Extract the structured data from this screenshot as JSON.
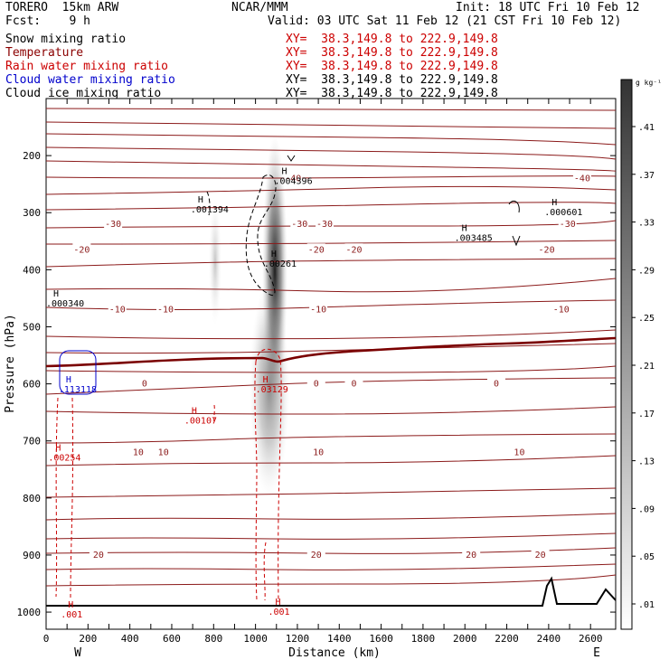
{
  "header": {
    "model": "TORERO  15km ARW",
    "center": "NCAR/MMM",
    "init": "Init: 18 UTC Fri 10 Feb 12",
    "fcst": "Fcst:    9 h",
    "valid": "Valid: 03 UTC Sat 11 Feb 12 (21 CST Fri 10 Feb 12)"
  },
  "fields": [
    {
      "name": "Snow mixing ratio",
      "color": "#000000",
      "xy": "XY=  38.3,149.8 to 222.9,149.8",
      "xy_color": "#cc0000"
    },
    {
      "name": "Temperature",
      "color": "#8b0000",
      "xy": "XY=  38.3,149.8 to 222.9,149.8",
      "xy_color": "#cc0000"
    },
    {
      "name": "Rain water mixing ratio",
      "color": "#cc0000",
      "xy": "XY=  38.3,149.8 to 222.9,149.8",
      "xy_color": "#cc0000"
    },
    {
      "name": "Cloud water mixing ratio",
      "color": "#0000cc",
      "xy": "XY=  38.3,149.8 to 222.9,149.8",
      "xy_color": "#000000"
    },
    {
      "name": "Cloud ice mixing ratio",
      "color": "#000000",
      "xy": "XY=  38.3,149.8 to 222.9,149.8",
      "xy_color": "#000000"
    }
  ],
  "chart_data": {
    "type": "cross-section",
    "xlabel": "Distance (km)",
    "ylabel": "Pressure (hPa)",
    "x_ticks": [
      0,
      100,
      200,
      300,
      400,
      500,
      600,
      700,
      800,
      900,
      1000,
      1100,
      1200,
      1300,
      1400,
      1500,
      1600,
      1700,
      1800,
      1900,
      2000,
      2100,
      2200,
      2300,
      2400,
      2500,
      2600
    ],
    "x_tick_labels": [
      "0",
      "",
      "200",
      "",
      "400",
      "",
      "600",
      "",
      "800",
      "",
      "1000",
      "",
      "1200",
      "",
      "1400",
      "",
      "1600",
      "",
      "1800",
      "",
      "2000",
      "",
      "2200",
      "",
      "2400",
      "",
      "2600"
    ],
    "xlim": [
      0,
      2720
    ],
    "y_ticks": [
      200,
      300,
      400,
      500,
      600,
      700,
      800,
      900,
      1000
    ],
    "ylim": [
      100,
      1030
    ],
    "left_end": "W",
    "right_end": "E",
    "colorbar": {
      "unit": "g kg⁻¹",
      "labels": [
        ".41",
        ".37",
        ".33",
        ".29",
        ".25",
        ".21",
        ".17",
        ".13",
        ".09",
        ".05",
        ".01"
      ]
    },
    "temperature_contour_labels": [
      {
        "text": "-40",
        "x": 1180,
        "p": 240
      },
      {
        "text": "-40",
        "x": 2560,
        "p": 240
      },
      {
        "text": "-30",
        "x": 320,
        "p": 320
      },
      {
        "text": "-30",
        "x": 1210,
        "p": 320
      },
      {
        "text": "-30",
        "x": 1330,
        "p": 320
      },
      {
        "text": "-30",
        "x": 2490,
        "p": 320
      },
      {
        "text": "-20",
        "x": 170,
        "p": 365
      },
      {
        "text": "-20",
        "x": 1290,
        "p": 365
      },
      {
        "text": "-20",
        "x": 1470,
        "p": 365
      },
      {
        "text": "-20",
        "x": 2390,
        "p": 365
      },
      {
        "text": "-10",
        "x": 340,
        "p": 470
      },
      {
        "text": "-10",
        "x": 570,
        "p": 470
      },
      {
        "text": "-10",
        "x": 1300,
        "p": 470
      },
      {
        "text": "-10",
        "x": 2460,
        "p": 470
      },
      {
        "text": "0",
        "x": 470,
        "p": 600
      },
      {
        "text": "0",
        "x": 1290,
        "p": 600
      },
      {
        "text": "0",
        "x": 1470,
        "p": 600
      },
      {
        "text": "0",
        "x": 2150,
        "p": 600
      },
      {
        "text": "10",
        "x": 440,
        "p": 720
      },
      {
        "text": "10",
        "x": 560,
        "p": 720
      },
      {
        "text": "10",
        "x": 1300,
        "p": 720
      },
      {
        "text": "10",
        "x": 2260,
        "p": 720
      },
      {
        "text": "20",
        "x": 250,
        "p": 900
      },
      {
        "text": "20",
        "x": 1290,
        "p": 900
      },
      {
        "text": "20",
        "x": 2030,
        "p": 900
      },
      {
        "text": "20",
        "x": 2360,
        "p": 900
      }
    ],
    "maxima_labels": [
      {
        "field": "snow",
        "text": ".004396",
        "x": 1090,
        "p": 245
      },
      {
        "field": "snow",
        "text": ".001394",
        "x": 690,
        "p": 295
      },
      {
        "field": "snow",
        "text": ".00261",
        "x": 1040,
        "p": 390
      },
      {
        "field": "ice",
        "text": ".000601",
        "x": 2380,
        "p": 300
      },
      {
        "field": "ice",
        "text": ".003485",
        "x": 1950,
        "p": 345
      },
      {
        "field": "ice",
        "text": ".000340",
        "x": 0,
        "p": 460
      },
      {
        "field": "cloud",
        "text": ".113118",
        "x": 60,
        "p": 610
      },
      {
        "field": "rain",
        "text": ".03129",
        "x": 1000,
        "p": 610
      },
      {
        "field": "rain",
        "text": ".00107",
        "x": 660,
        "p": 665
      },
      {
        "field": "rain",
        "text": ".00254",
        "x": 10,
        "p": 730
      },
      {
        "field": "rain",
        "text": ".001",
        "x": 1060,
        "p": 1000
      },
      {
        "field": "rain",
        "text": ".001",
        "x": 70,
        "p": 1005
      }
    ]
  }
}
